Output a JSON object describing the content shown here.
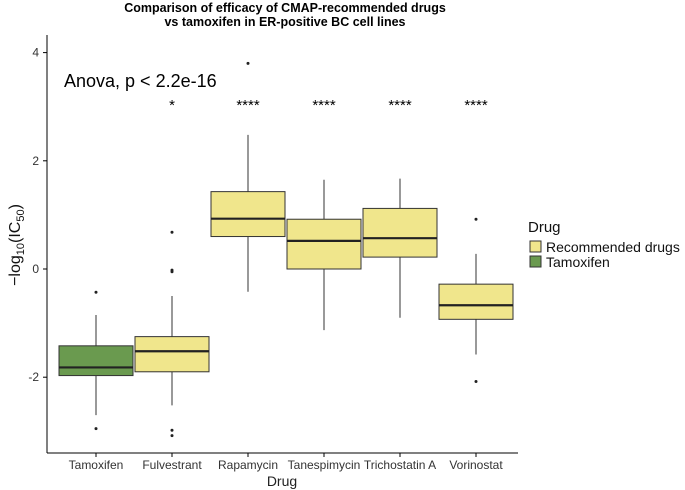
{
  "chart_data": {
    "type": "boxplot",
    "title": "Comparison of efficacy of CMAP-recommended drugs",
    "subtitle": "vs tamoxifen in ER-positive BC cell lines",
    "xlabel": "Drug",
    "ylabel": {
      "prefix": "−log",
      "sub1": "10",
      "mid": "(IC",
      "sub2": "50",
      "suffix": ")"
    },
    "ylim": [
      -3.5,
      4.3
    ],
    "yticks": [
      4,
      2,
      0,
      -2
    ],
    "ytick_labels": [
      "4",
      "2",
      "0",
      "-2"
    ],
    "annotation": "Anova, p < 2.2e-16",
    "legend": {
      "title": "Drug",
      "entries": [
        {
          "label": "Recommended drugs",
          "color": "#f0e68c"
        },
        {
          "label": "Tamoxifen",
          "color": "#6a9a4f"
        }
      ]
    },
    "groups": [
      {
        "name": "Tamoxifen",
        "group": "Tamoxifen",
        "min": -2.7,
        "q1": -1.97,
        "median": -1.82,
        "q3": -1.42,
        "max": -0.85,
        "outliers": [
          -0.43,
          -2.95
        ],
        "sig": ""
      },
      {
        "name": "Fulvestrant",
        "group": "Recommended drugs",
        "min": -2.52,
        "q1": -1.9,
        "median": -1.52,
        "q3": -1.25,
        "max": -0.5,
        "outliers": [
          0.68,
          -0.02,
          -0.05,
          -2.98,
          -3.08
        ],
        "sig": "*"
      },
      {
        "name": "Rapamycin",
        "group": "Recommended drugs",
        "min": -0.42,
        "q1": 0.6,
        "median": 0.93,
        "q3": 1.43,
        "max": 2.48,
        "outliers": [
          3.8
        ],
        "sig": "****"
      },
      {
        "name": "Tanespimycin",
        "group": "Recommended drugs",
        "min": -1.13,
        "q1": 0.0,
        "median": 0.52,
        "q3": 0.92,
        "max": 1.65,
        "outliers": [],
        "sig": "****"
      },
      {
        "name": "Trichostatin A",
        "group": "Recommended drugs",
        "min": -0.9,
        "q1": 0.22,
        "median": 0.57,
        "q3": 1.12,
        "max": 1.67,
        "outliers": [],
        "sig": "****"
      },
      {
        "name": "Vorinostat",
        "group": "Recommended drugs",
        "min": -1.58,
        "q1": -0.93,
        "median": -0.67,
        "q3": -0.28,
        "max": 0.28,
        "outliers": [
          0.92,
          -2.08
        ],
        "sig": "****"
      }
    ]
  }
}
